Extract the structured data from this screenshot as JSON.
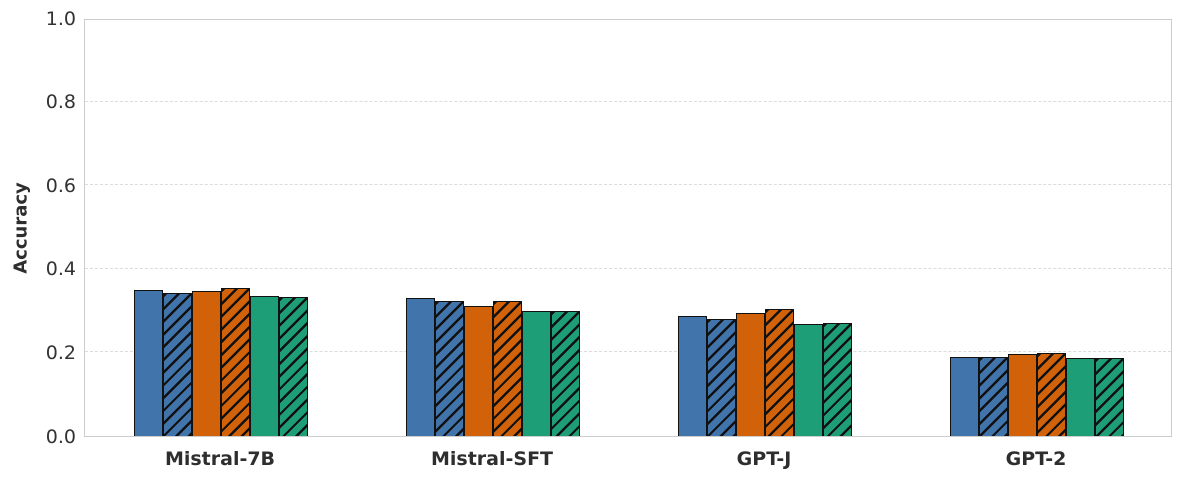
{
  "chart_data": {
    "type": "bar",
    "title": "",
    "xlabel": "",
    "ylabel": "Accuracy",
    "ylim": [
      0.0,
      1.0
    ],
    "yticks": [
      0.0,
      0.2,
      0.4,
      0.6,
      0.8,
      1.0
    ],
    "ytick_labels": [
      "0.0",
      "0.2",
      "0.4",
      "0.6",
      "0.8",
      "1.0"
    ],
    "categories": [
      "Mistral-7B",
      "Mistral-SFT",
      "GPT-J",
      "GPT-2"
    ],
    "grid": "horizontal-dashed",
    "legend": "none",
    "series": [
      {
        "name": "blue-solid",
        "color": "#4174AA",
        "hatch": false,
        "values": [
          0.35,
          0.33,
          0.288,
          0.19
        ]
      },
      {
        "name": "blue-hatched",
        "color": "#4174AA",
        "hatch": true,
        "values": [
          0.343,
          0.322,
          0.281,
          0.19
        ]
      },
      {
        "name": "orange-solid",
        "color": "#D2620A",
        "hatch": false,
        "values": [
          0.348,
          0.312,
          0.295,
          0.196
        ]
      },
      {
        "name": "orange-hatched",
        "color": "#D2620A",
        "hatch": true,
        "values": [
          0.353,
          0.322,
          0.305,
          0.199
        ]
      },
      {
        "name": "green-solid",
        "color": "#1E9E77",
        "hatch": false,
        "values": [
          0.336,
          0.298,
          0.267,
          0.186
        ]
      },
      {
        "name": "green-hatched",
        "color": "#1E9E77",
        "hatch": true,
        "values": [
          0.333,
          0.3,
          0.271,
          0.186
        ]
      }
    ],
    "style": {
      "bar_edge_color": "#111111",
      "hatch_pattern": "forward-slash",
      "hatch_color": "#111111",
      "grid_color": "#dcdcdc",
      "spine_color": "#cccccc",
      "tick_text_color": "#333333",
      "label_text_color": "#2e2e2e",
      "background": "#ffffff"
    }
  }
}
